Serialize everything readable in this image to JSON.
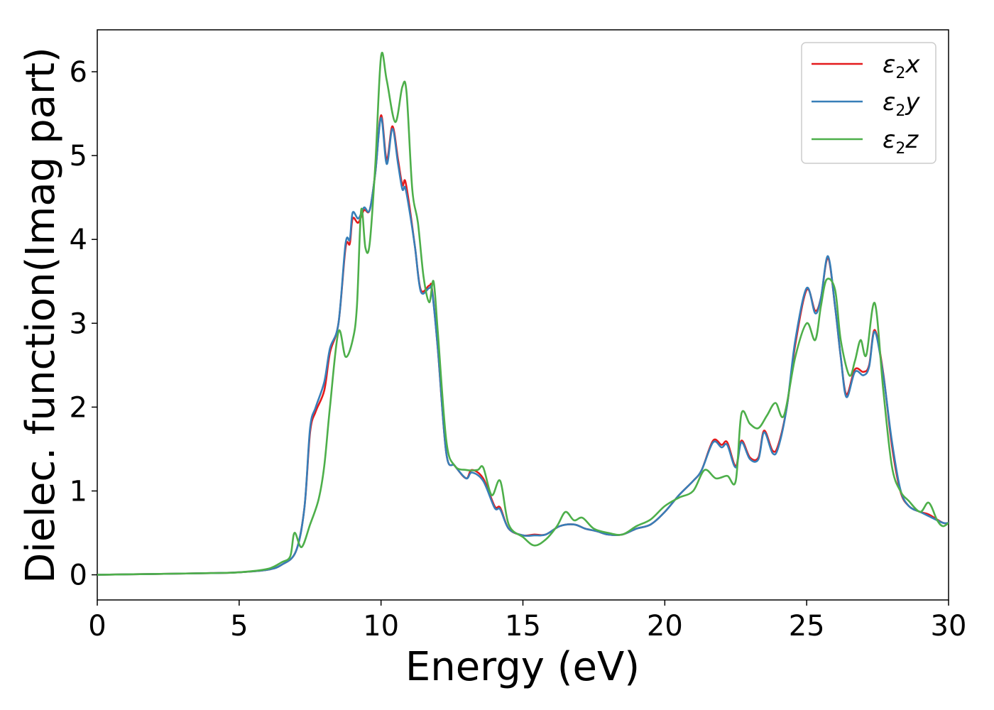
{
  "chart_data": {
    "type": "line",
    "xlabel": "Energy (eV)",
    "ylabel": "Dielec. function(Imag part)",
    "xlim": [
      0,
      30
    ],
    "ylim": [
      -0.3,
      6.5
    ],
    "xticks": [
      "0",
      "5",
      "10",
      "15",
      "20",
      "25",
      "30"
    ],
    "yticks": [
      "0",
      "1",
      "2",
      "3",
      "4",
      "5",
      "6"
    ],
    "grid": false,
    "legend_position": "top-right",
    "series": [
      {
        "name": "ε₂x",
        "legend_base": "ε",
        "legend_sub": "2",
        "legend_var": "x",
        "color": "#e41a1c",
        "points": [
          [
            0,
            0
          ],
          [
            2,
            0.01
          ],
          [
            4,
            0.02
          ],
          [
            5,
            0.03
          ],
          [
            6,
            0.06
          ],
          [
            6.5,
            0.12
          ],
          [
            7,
            0.28
          ],
          [
            7.3,
            0.8
          ],
          [
            7.5,
            1.7
          ],
          [
            7.7,
            1.95
          ],
          [
            8,
            2.2
          ],
          [
            8.2,
            2.65
          ],
          [
            8.5,
            3.0
          ],
          [
            8.75,
            3.9
          ],
          [
            8.9,
            3.95
          ],
          [
            9.0,
            4.25
          ],
          [
            9.2,
            4.2
          ],
          [
            9.4,
            4.35
          ],
          [
            9.6,
            4.35
          ],
          [
            9.8,
            4.8
          ],
          [
            10.0,
            5.48
          ],
          [
            10.2,
            4.95
          ],
          [
            10.4,
            5.35
          ],
          [
            10.6,
            4.95
          ],
          [
            10.75,
            4.65
          ],
          [
            10.85,
            4.7
          ],
          [
            11.0,
            4.4
          ],
          [
            11.2,
            3.9
          ],
          [
            11.4,
            3.4
          ],
          [
            11.7,
            3.45
          ],
          [
            11.8,
            3.4
          ],
          [
            12.0,
            2.7
          ],
          [
            12.3,
            1.45
          ],
          [
            12.6,
            1.3
          ],
          [
            13.0,
            1.15
          ],
          [
            13.2,
            1.25
          ],
          [
            13.6,
            1.15
          ],
          [
            14.0,
            0.82
          ],
          [
            14.2,
            0.8
          ],
          [
            14.5,
            0.55
          ],
          [
            15.0,
            0.47
          ],
          [
            15.4,
            0.48
          ],
          [
            15.8,
            0.48
          ],
          [
            16.3,
            0.58
          ],
          [
            16.8,
            0.6
          ],
          [
            17.2,
            0.55
          ],
          [
            17.6,
            0.52
          ],
          [
            18,
            0.48
          ],
          [
            18.5,
            0.48
          ],
          [
            19,
            0.55
          ],
          [
            19.5,
            0.6
          ],
          [
            20,
            0.75
          ],
          [
            20.5,
            0.95
          ],
          [
            21,
            1.12
          ],
          [
            21.3,
            1.25
          ],
          [
            21.7,
            1.6
          ],
          [
            22,
            1.55
          ],
          [
            22.2,
            1.58
          ],
          [
            22.5,
            1.3
          ],
          [
            22.7,
            1.6
          ],
          [
            23,
            1.4
          ],
          [
            23.3,
            1.4
          ],
          [
            23.5,
            1.72
          ],
          [
            23.8,
            1.48
          ],
          [
            24,
            1.55
          ],
          [
            24.3,
            2.0
          ],
          [
            24.6,
            2.75
          ],
          [
            25,
            3.4
          ],
          [
            25.3,
            3.15
          ],
          [
            25.5,
            3.3
          ],
          [
            25.75,
            3.78
          ],
          [
            26,
            3.2
          ],
          [
            26.2,
            2.6
          ],
          [
            26.4,
            2.15
          ],
          [
            26.7,
            2.45
          ],
          [
            27.0,
            2.42
          ],
          [
            27.2,
            2.5
          ],
          [
            27.4,
            2.92
          ],
          [
            27.7,
            2.4
          ],
          [
            28,
            1.55
          ],
          [
            28.3,
            1.0
          ],
          [
            28.6,
            0.82
          ],
          [
            29,
            0.75
          ],
          [
            29.3,
            0.72
          ],
          [
            29.8,
            0.62
          ],
          [
            30,
            0.62
          ]
        ]
      },
      {
        "name": "ε₂y",
        "legend_base": "ε",
        "legend_sub": "2",
        "legend_var": "y",
        "color": "#377eb8",
        "points": [
          [
            0,
            0
          ],
          [
            2,
            0.01
          ],
          [
            4,
            0.02
          ],
          [
            5,
            0.03
          ],
          [
            6,
            0.06
          ],
          [
            6.5,
            0.12
          ],
          [
            7,
            0.28
          ],
          [
            7.3,
            0.8
          ],
          [
            7.5,
            1.75
          ],
          [
            7.7,
            2.0
          ],
          [
            8,
            2.3
          ],
          [
            8.2,
            2.7
          ],
          [
            8.5,
            3.0
          ],
          [
            8.75,
            3.95
          ],
          [
            8.9,
            4.0
          ],
          [
            9.0,
            4.32
          ],
          [
            9.2,
            4.25
          ],
          [
            9.4,
            4.38
          ],
          [
            9.6,
            4.35
          ],
          [
            9.8,
            4.8
          ],
          [
            10.0,
            5.45
          ],
          [
            10.2,
            4.9
          ],
          [
            10.4,
            5.32
          ],
          [
            10.6,
            4.9
          ],
          [
            10.75,
            4.6
          ],
          [
            10.85,
            4.62
          ],
          [
            11.0,
            4.35
          ],
          [
            11.2,
            3.9
          ],
          [
            11.4,
            3.38
          ],
          [
            11.7,
            3.42
          ],
          [
            11.8,
            3.38
          ],
          [
            12.0,
            2.7
          ],
          [
            12.3,
            1.45
          ],
          [
            12.6,
            1.3
          ],
          [
            13.0,
            1.15
          ],
          [
            13.2,
            1.22
          ],
          [
            13.6,
            1.12
          ],
          [
            14.0,
            0.8
          ],
          [
            14.2,
            0.78
          ],
          [
            14.5,
            0.55
          ],
          [
            15.0,
            0.47
          ],
          [
            15.4,
            0.47
          ],
          [
            15.8,
            0.48
          ],
          [
            16.3,
            0.58
          ],
          [
            16.8,
            0.6
          ],
          [
            17.2,
            0.55
          ],
          [
            17.6,
            0.52
          ],
          [
            18,
            0.48
          ],
          [
            18.5,
            0.48
          ],
          [
            19,
            0.55
          ],
          [
            19.5,
            0.6
          ],
          [
            20,
            0.75
          ],
          [
            20.5,
            0.95
          ],
          [
            21,
            1.12
          ],
          [
            21.3,
            1.25
          ],
          [
            21.7,
            1.58
          ],
          [
            22,
            1.52
          ],
          [
            22.2,
            1.55
          ],
          [
            22.5,
            1.28
          ],
          [
            22.7,
            1.58
          ],
          [
            23,
            1.38
          ],
          [
            23.3,
            1.38
          ],
          [
            23.5,
            1.7
          ],
          [
            23.8,
            1.45
          ],
          [
            24,
            1.52
          ],
          [
            24.3,
            2.0
          ],
          [
            24.6,
            2.8
          ],
          [
            25,
            3.42
          ],
          [
            25.3,
            3.12
          ],
          [
            25.5,
            3.3
          ],
          [
            25.75,
            3.8
          ],
          [
            26,
            3.2
          ],
          [
            26.2,
            2.6
          ],
          [
            26.4,
            2.12
          ],
          [
            26.7,
            2.42
          ],
          [
            27.0,
            2.38
          ],
          [
            27.2,
            2.48
          ],
          [
            27.4,
            2.9
          ],
          [
            27.7,
            2.38
          ],
          [
            28,
            1.6
          ],
          [
            28.3,
            1.02
          ],
          [
            28.6,
            0.82
          ],
          [
            29,
            0.75
          ],
          [
            29.3,
            0.7
          ],
          [
            29.8,
            0.62
          ],
          [
            30,
            0.62
          ]
        ]
      },
      {
        "name": "ε₂z",
        "legend_base": "ε",
        "legend_sub": "2",
        "legend_var": "z",
        "color": "#4daf4a",
        "points": [
          [
            0,
            0
          ],
          [
            2,
            0.01
          ],
          [
            4,
            0.02
          ],
          [
            5,
            0.03
          ],
          [
            6,
            0.07
          ],
          [
            6.5,
            0.15
          ],
          [
            6.8,
            0.22
          ],
          [
            6.95,
            0.5
          ],
          [
            7.2,
            0.33
          ],
          [
            7.5,
            0.6
          ],
          [
            7.8,
            0.9
          ],
          [
            8.0,
            1.3
          ],
          [
            8.2,
            2.0
          ],
          [
            8.5,
            2.9
          ],
          [
            8.75,
            2.6
          ],
          [
            9.0,
            2.8
          ],
          [
            9.15,
            3.2
          ],
          [
            9.3,
            4.35
          ],
          [
            9.45,
            3.9
          ],
          [
            9.6,
            3.95
          ],
          [
            9.8,
            4.9
          ],
          [
            10.0,
            6.18
          ],
          [
            10.2,
            5.9
          ],
          [
            10.5,
            5.4
          ],
          [
            10.75,
            5.82
          ],
          [
            10.9,
            5.75
          ],
          [
            11.1,
            4.6
          ],
          [
            11.3,
            4.2
          ],
          [
            11.5,
            3.55
          ],
          [
            11.7,
            3.25
          ],
          [
            11.85,
            3.5
          ],
          [
            12.0,
            2.9
          ],
          [
            12.3,
            1.6
          ],
          [
            12.6,
            1.3
          ],
          [
            13.0,
            1.25
          ],
          [
            13.4,
            1.25
          ],
          [
            13.6,
            1.28
          ],
          [
            13.9,
            0.95
          ],
          [
            14.2,
            1.12
          ],
          [
            14.5,
            0.6
          ],
          [
            15.0,
            0.45
          ],
          [
            15.4,
            0.35
          ],
          [
            15.8,
            0.42
          ],
          [
            16.2,
            0.58
          ],
          [
            16.5,
            0.75
          ],
          [
            16.8,
            0.65
          ],
          [
            17.1,
            0.68
          ],
          [
            17.5,
            0.55
          ],
          [
            18,
            0.5
          ],
          [
            18.5,
            0.48
          ],
          [
            19,
            0.58
          ],
          [
            19.5,
            0.66
          ],
          [
            20,
            0.82
          ],
          [
            20.5,
            0.92
          ],
          [
            21,
            1.0
          ],
          [
            21.4,
            1.25
          ],
          [
            21.8,
            1.15
          ],
          [
            22.2,
            1.18
          ],
          [
            22.5,
            1.12
          ],
          [
            22.7,
            1.92
          ],
          [
            23,
            1.8
          ],
          [
            23.3,
            1.75
          ],
          [
            23.6,
            1.9
          ],
          [
            23.9,
            2.05
          ],
          [
            24.2,
            1.9
          ],
          [
            24.6,
            2.6
          ],
          [
            25.0,
            3.0
          ],
          [
            25.3,
            2.8
          ],
          [
            25.5,
            3.2
          ],
          [
            25.7,
            3.52
          ],
          [
            26.0,
            3.4
          ],
          [
            26.2,
            2.8
          ],
          [
            26.5,
            2.38
          ],
          [
            26.7,
            2.55
          ],
          [
            26.9,
            2.8
          ],
          [
            27.1,
            2.62
          ],
          [
            27.4,
            3.24
          ],
          [
            27.7,
            2.2
          ],
          [
            28,
            1.3
          ],
          [
            28.3,
            1.0
          ],
          [
            28.6,
            0.88
          ],
          [
            29,
            0.75
          ],
          [
            29.3,
            0.86
          ],
          [
            29.6,
            0.65
          ],
          [
            29.8,
            0.58
          ],
          [
            30,
            0.62
          ]
        ]
      }
    ]
  }
}
